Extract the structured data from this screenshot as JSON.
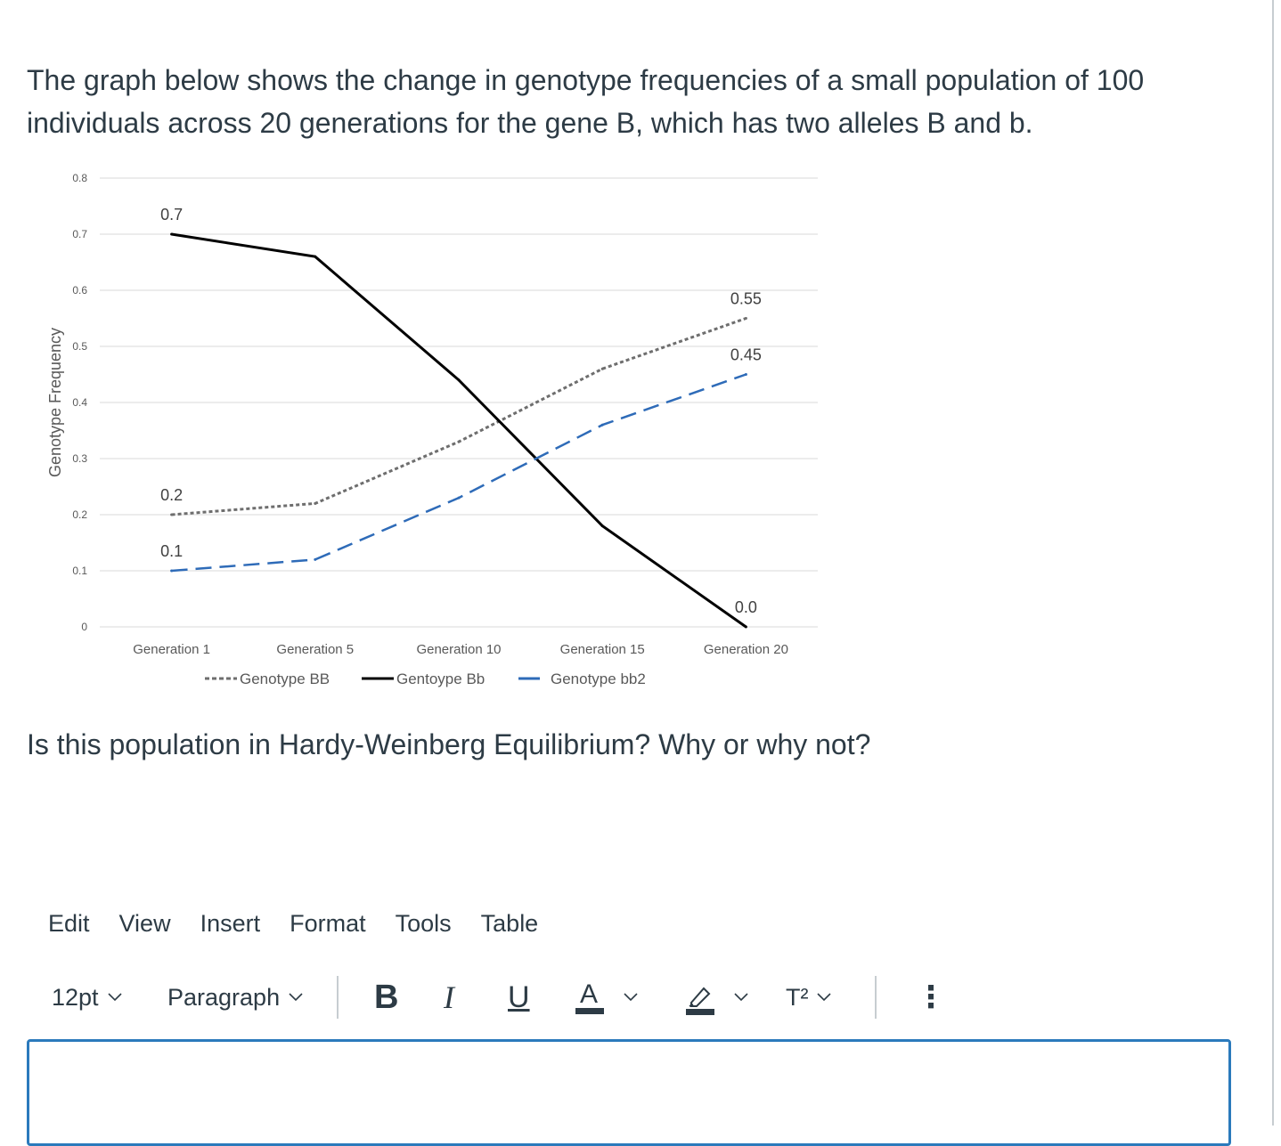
{
  "question": {
    "text": "The graph below shows the change in genotype frequencies of a small population of 100 individuals across 20 generations for the gene B, which has two alleles B and b.",
    "prompt": "Is this population in Hardy-Weinberg Equilibrium? Why or why not?"
  },
  "chart_data": {
    "type": "line",
    "categories": [
      "Generation 1",
      "Generation 5",
      "Generation 10",
      "Generation 15",
      "Generation 20"
    ],
    "ylabel": "Genotype Frequency",
    "ylim": [
      0,
      0.8
    ],
    "yticks": [
      "0",
      "0.1",
      "0.2",
      "0.3",
      "0.4",
      "0.5",
      "0.6",
      "0.7",
      "0.8"
    ],
    "grid": true,
    "legend_position": "bottom",
    "series": [
      {
        "name": "Genotype BB",
        "values": [
          0.2,
          0.22,
          0.33,
          0.46,
          0.55
        ],
        "color": "#6e6e6e",
        "style": "dotted",
        "labels": [
          "0.2",
          "",
          "",
          "",
          "0.55"
        ]
      },
      {
        "name": "Gentoype Bb",
        "values": [
          0.7,
          0.66,
          0.44,
          0.18,
          0.0
        ],
        "color": "#000000",
        "style": "solid",
        "labels": [
          "0.7",
          "",
          "",
          "",
          "0.0"
        ]
      },
      {
        "name": "Genotype bb2",
        "values": [
          0.1,
          0.12,
          0.23,
          0.36,
          0.45
        ],
        "color": "#2e6bb8",
        "style": "dashed",
        "labels": [
          "0.1",
          "",
          "",
          "",
          "0.45"
        ]
      }
    ]
  },
  "editor": {
    "menus": [
      "Edit",
      "View",
      "Insert",
      "Format",
      "Tools",
      "Table"
    ],
    "font_size": "12pt",
    "block_format": "Paragraph",
    "bold_label": "B",
    "italic_label": "I",
    "underline_label": "U",
    "text_color_label": "A",
    "superscript_label": "T²",
    "more_label": "⋮",
    "content": ""
  }
}
